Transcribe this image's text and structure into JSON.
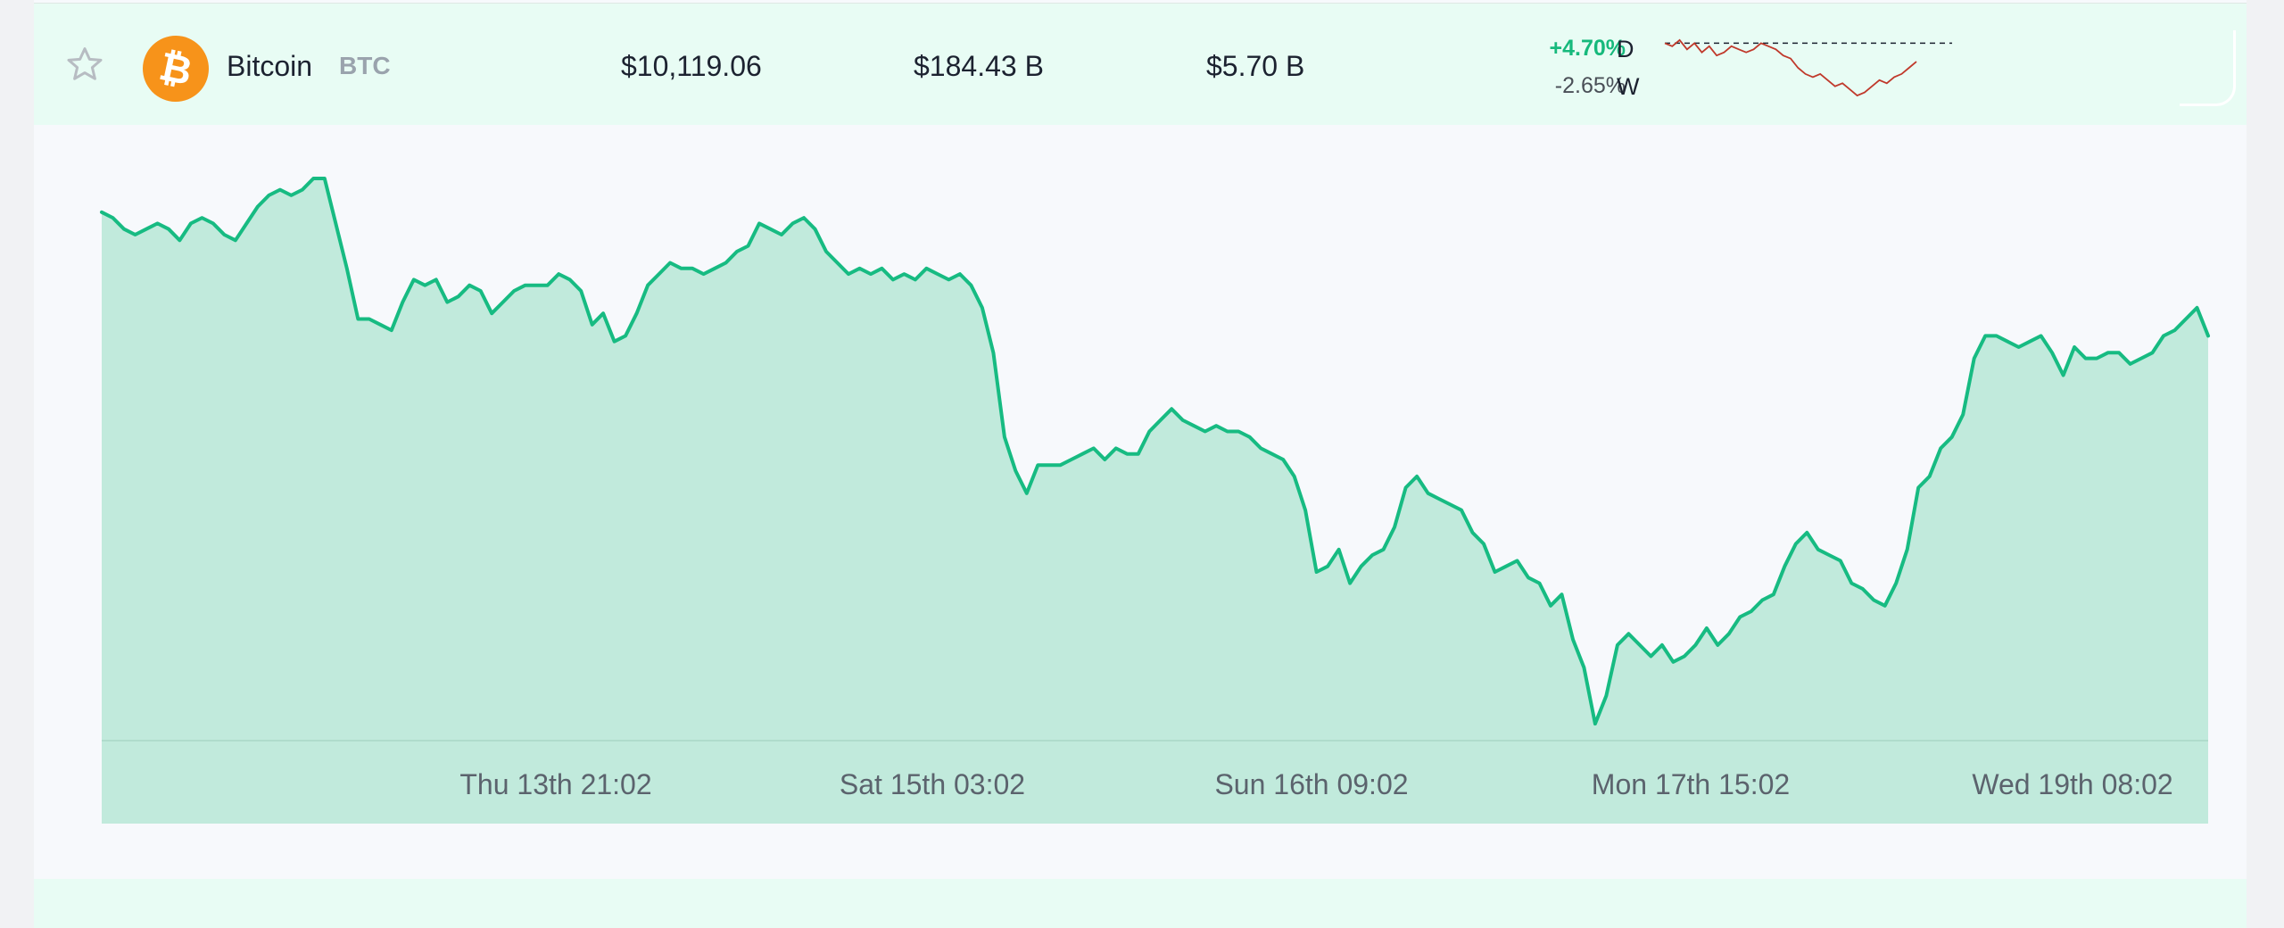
{
  "coin": {
    "name": "Bitcoin",
    "symbol": "BTC",
    "price": "$10,119.06",
    "market_cap": "$184.43 B",
    "volume": "$5.70 B",
    "change_day": "+4.70%",
    "change_week": "-2.65%",
    "period_day_label": "D",
    "period_week_label": "W",
    "logo_glyph": "₿",
    "logo_icon": "bitcoin-icon",
    "favorite_icon": "star-icon"
  },
  "colors": {
    "positive": "#16b97c",
    "negative": "#c0392b",
    "accent_fill": "#c1eadc",
    "line": "#17bb82",
    "row_bg": "#e8fcf4",
    "logo": "#f7931a"
  },
  "chart_data": {
    "type": "area",
    "title": "",
    "xlabel": "",
    "ylabel": "",
    "grid": false,
    "x_tick_labels": [
      "Thu 13th 21:02",
      "Sat 15th 03:02",
      "Sun 16th 09:02",
      "Mon 17th 15:02",
      "Wed 19th 08:02"
    ],
    "ylim": [
      0,
      100
    ],
    "series": [
      {
        "values": [
          94,
          93,
          91,
          90,
          91,
          92,
          91,
          89,
          92,
          93,
          92,
          90,
          89,
          92,
          95,
          97,
          98,
          97,
          98,
          100,
          100,
          92,
          84,
          75,
          75,
          74,
          73,
          78,
          82,
          81,
          82,
          78,
          79,
          81,
          80,
          76,
          78,
          80,
          81,
          81,
          81,
          83,
          82,
          80,
          74,
          76,
          71,
          72,
          76,
          81,
          83,
          85,
          84,
          84,
          83,
          84,
          85,
          87,
          88,
          92,
          91,
          90,
          92,
          93,
          91,
          87,
          85,
          83,
          84,
          83,
          84,
          82,
          83,
          82,
          84,
          83,
          82,
          83,
          81,
          77,
          69,
          54,
          48,
          44,
          49,
          49,
          49,
          50,
          51,
          52,
          50,
          52,
          51,
          51,
          55,
          57,
          59,
          57,
          56,
          55,
          56,
          55,
          55,
          54,
          52,
          51,
          50,
          47,
          41,
          30,
          31,
          34,
          28,
          31,
          33,
          34,
          38,
          45,
          47,
          44,
          43,
          42,
          41,
          37,
          35,
          30,
          31,
          32,
          29,
          28,
          24,
          26,
          18,
          13,
          3,
          8,
          17,
          19,
          17,
          15,
          17,
          14,
          15,
          17,
          20,
          17,
          19,
          22,
          23,
          25,
          26,
          31,
          35,
          37,
          34,
          33,
          32,
          28,
          27,
          25,
          24,
          28,
          34,
          45,
          47,
          52,
          54,
          58,
          68,
          72,
          72,
          71,
          70,
          71,
          72,
          69,
          65,
          70,
          68,
          68,
          69,
          69,
          67,
          68,
          69,
          72,
          73,
          75,
          77,
          72
        ],
        "color": "#17bb82"
      }
    ]
  },
  "sparkline": {
    "dashed_reference": 100,
    "values": [
      100,
      99,
      101,
      98,
      100,
      97,
      99,
      96,
      97,
      99,
      98,
      97,
      98,
      100,
      99,
      98,
      96,
      95,
      92,
      90,
      89,
      90,
      88,
      86,
      87,
      85,
      83,
      84,
      86,
      88,
      87,
      89,
      90,
      92,
      94
    ]
  }
}
